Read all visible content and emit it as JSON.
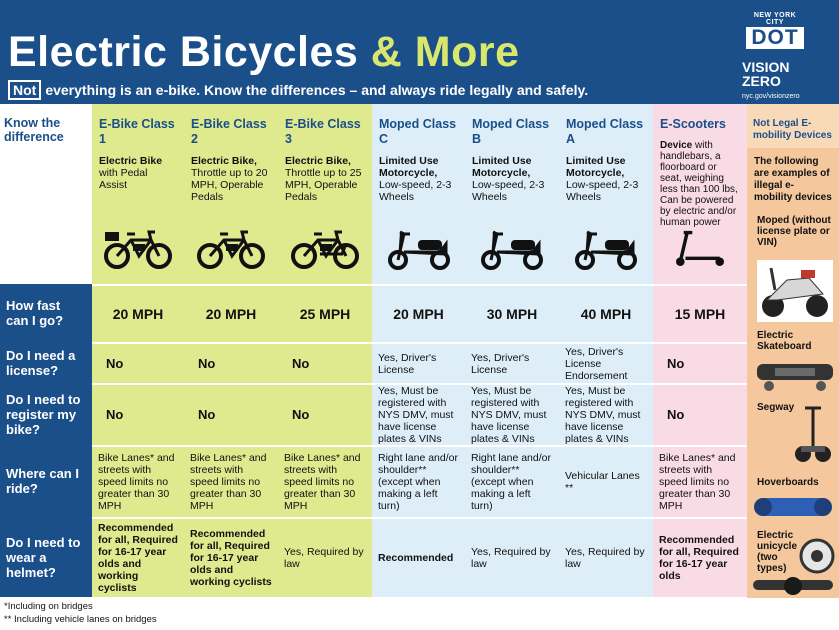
{
  "header": {
    "title_main": "Electric Bicycles",
    "title_accent_word": "& More",
    "not_label": "Not",
    "subtitle": "everything is an e-bike. Know the differences – and always ride legally and safely.",
    "dot_city": "NEW YORK CITY",
    "dot_logo": "DOT",
    "vision": "VISION",
    "zero": "ZERO",
    "vision_url": "nyc.gov/visionzero",
    "bg_color": "#1b4f8a",
    "accent_color": "#d9e86c"
  },
  "know": "Know the difference",
  "columns": [
    {
      "name": "E-Bike Class 1",
      "desc_bold": "Electric Bike",
      "desc": " with Pedal Assist",
      "icon": "ebike-basket-icon",
      "group": "green"
    },
    {
      "name": "E-Bike Class 2",
      "desc_bold": "Electric Bike,",
      "desc": " Throttle up to 20 MPH, Operable Pedals",
      "icon": "ebike-icon",
      "group": "green"
    },
    {
      "name": "E-Bike Class 3",
      "desc_bold": "Electric Bike,",
      "desc": " Throttle up to 25 MPH, Operable Pedals",
      "icon": "ebike-step-icon",
      "group": "green"
    },
    {
      "name": "Moped Class C",
      "desc_bold": "Limited Use Motorcycle,",
      "desc": " Low-speed, 2-3 Wheels",
      "icon": "moped-icon",
      "group": "blue"
    },
    {
      "name": "Moped Class B",
      "desc_bold": "Limited Use Motorcycle,",
      "desc": " Low-speed, 2-3 Wheels",
      "icon": "moped-icon",
      "group": "blue"
    },
    {
      "name": "Moped Class A",
      "desc_bold": "Limited Use Motorcycle,",
      "desc": " Low-speed, 2-3 Wheels",
      "icon": "moped-icon",
      "group": "blue"
    },
    {
      "name": "E-Scooters",
      "desc_bold": "Device",
      "desc": " with handlebars, a floorboard or seat, weighing less than 100 lbs, Can be powered by electric and/or human power",
      "icon": "escooter-icon",
      "group": "pink"
    }
  ],
  "rows": [
    {
      "label": "How fast can I go?",
      "values": [
        "20 MPH",
        "20 MPH",
        "25 MPH",
        "20 MPH",
        "30 MPH",
        "40 MPH",
        "15 MPH"
      ]
    },
    {
      "label": "Do I need a license?",
      "values": [
        "No",
        "No",
        "No",
        "Yes, Driver's License",
        "Yes, Driver's License",
        "Yes, Driver's License Endorsement",
        "No"
      ]
    },
    {
      "label": "Do I need to register my bike?",
      "values": [
        "No",
        "No",
        "No",
        "Yes, Must be registered with NYS DMV, must have license plates & VINs",
        "Yes, Must be registered with NYS DMV, must have license plates & VINs",
        "Yes, Must be registered with NYS DMV, must have license plates & VINs",
        "No"
      ]
    },
    {
      "label": "Where can I ride?",
      "values": [
        "Bike Lanes* and streets with speed limits no greater than 30 MPH",
        "Bike Lanes* and streets with speed limits no greater than 30 MPH",
        "Bike Lanes* and streets with speed limits no greater than 30 MPH",
        "Right lane and/or shoulder** (except when making a left turn)",
        "Right lane and/or shoulder** (except when making a left turn)",
        "Vehicular Lanes **",
        "Bike Lanes* and streets with speed limits no greater than 30 MPH"
      ]
    },
    {
      "label": "Do I need to wear a helmet?",
      "values": [
        "Recommended for all, Required for 16-17 year olds and working cyclists",
        "Recommended for all, Required for 16-17 year olds and working cyclists",
        "Yes, Required by law",
        "Recommended",
        "Yes, Required by law",
        "Yes, Required by law",
        "Recommended for all, Required for 16-17 year olds"
      ]
    }
  ],
  "not_legal": {
    "heading": "Not Legal E-mobility Devices",
    "intro": "The following are examples of illegal e-mobility devices",
    "items": [
      "Moped (without license plate or VIN)",
      "Electric Skateboard",
      "Segway",
      "Hoverboards",
      "Electric unicycle (two types)"
    ]
  },
  "footnotes": [
    "*Including on bridges",
    "** Including vehicle lanes on bridges"
  ],
  "colors": {
    "green": "#dfe98e",
    "blue": "#ddeef8",
    "pink": "#f8dbe4",
    "label": "#1b4f8a",
    "not_legal": "#f4c79d"
  }
}
